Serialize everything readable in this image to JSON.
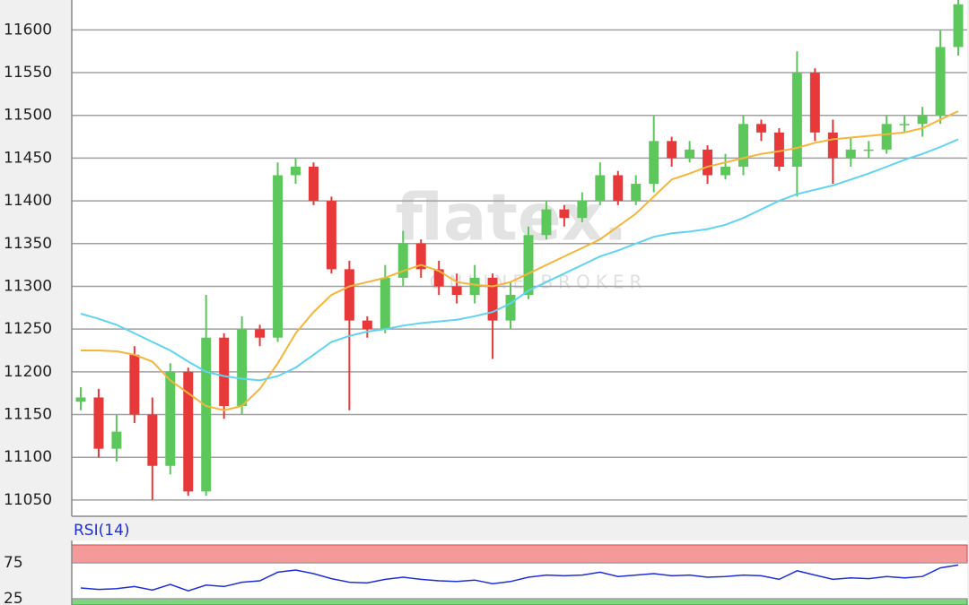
{
  "chart_data": [
    {
      "type": "candlestick",
      "watermark": "flatex.",
      "watermark_subtitle": "ONLINE BROKER",
      "open": [
        11165,
        11170,
        11110,
        11220,
        11150,
        11090,
        11200,
        11060,
        11240,
        11160,
        11250,
        11240,
        11430,
        11440,
        11400,
        11320,
        11260,
        11250,
        11310,
        11350,
        11320,
        11300,
        11290,
        11310,
        11260,
        11290,
        11360,
        11390,
        11380,
        11400,
        11430,
        11400,
        11420,
        11470,
        11450,
        11460,
        11430,
        11440,
        11490,
        11480,
        11440,
        11550,
        11480,
        11450,
        11460,
        11460,
        11490,
        11490,
        11500,
        11580
      ],
      "high": [
        11182,
        11180,
        11150,
        11230,
        11170,
        11210,
        11205,
        11290,
        11245,
        11265,
        11255,
        11445,
        11450,
        11445,
        11405,
        11330,
        11265,
        11325,
        11365,
        11355,
        11330,
        11315,
        11325,
        11315,
        11305,
        11370,
        11400,
        11395,
        11410,
        11445,
        11435,
        11430,
        11500,
        11475,
        11470,
        11465,
        11455,
        11500,
        11495,
        11485,
        11575,
        11555,
        11495,
        11475,
        11470,
        11500,
        11500,
        11510,
        11600,
        11640
      ],
      "low": [
        11155,
        11100,
        11095,
        11140,
        11050,
        11080,
        11055,
        11055,
        11145,
        11150,
        11230,
        11235,
        11420,
        11395,
        11315,
        11155,
        11240,
        11245,
        11300,
        11310,
        11290,
        11280,
        11280,
        11215,
        11250,
        11285,
        11355,
        11370,
        11375,
        11395,
        11395,
        11395,
        11410,
        11440,
        11445,
        11420,
        11425,
        11430,
        11470,
        11435,
        11405,
        11470,
        11420,
        11440,
        11450,
        11455,
        11480,
        11475,
        11490,
        11570
      ],
      "close": [
        11170,
        11110,
        11130,
        11150,
        11090,
        11200,
        11060,
        11240,
        11160,
        11250,
        11240,
        11430,
        11440,
        11400,
        11320,
        11260,
        11250,
        11310,
        11350,
        11320,
        11300,
        11290,
        11310,
        11260,
        11290,
        11360,
        11390,
        11380,
        11400,
        11430,
        11400,
        11420,
        11470,
        11450,
        11460,
        11430,
        11440,
        11490,
        11480,
        11440,
        11550,
        11480,
        11450,
        11460,
        11460,
        11490,
        11490,
        11500,
        11580,
        11630
      ],
      "up_color": "#5cc85c",
      "down_color": "#e8393a",
      "series": [
        {
          "color": "#f5b53a",
          "values": [
            11225,
            11225,
            11224,
            11220,
            11212,
            11190,
            11175,
            11160,
            11155,
            11160,
            11180,
            11210,
            11245,
            11270,
            11290,
            11300,
            11305,
            11310,
            11318,
            11325,
            11318,
            11305,
            11302,
            11300,
            11305,
            11315,
            11325,
            11335,
            11345,
            11355,
            11370,
            11385,
            11405,
            11425,
            11432,
            11440,
            11445,
            11450,
            11455,
            11458,
            11462,
            11468,
            11472,
            11474,
            11476,
            11478,
            11480,
            11485,
            11495,
            11505
          ]
        },
        {
          "color": "#5fd3f0",
          "values": [
            11268,
            11262,
            11255,
            11245,
            11235,
            11225,
            11212,
            11200,
            11195,
            11192,
            11190,
            11195,
            11205,
            11220,
            11235,
            11242,
            11247,
            11250,
            11254,
            11257,
            11259,
            11261,
            11265,
            11270,
            11280,
            11295,
            11305,
            11315,
            11325,
            11335,
            11342,
            11350,
            11358,
            11362,
            11364,
            11367,
            11372,
            11380,
            11390,
            11400,
            11408,
            11413,
            11418,
            11425,
            11432,
            11440,
            11448,
            11455,
            11463,
            11472
          ]
        }
      ],
      "ylim": [
        11031,
        11635
      ],
      "yticks": [
        11050,
        11100,
        11150,
        11200,
        11250,
        11300,
        11350,
        11400,
        11450,
        11500,
        11550,
        11600
      ],
      "grid": true
    },
    {
      "type": "line",
      "title": "RSI(14)",
      "series": [
        {
          "color": "#1f2fd8",
          "values": [
            40,
            38,
            39,
            42,
            37,
            45,
            36,
            44,
            42,
            48,
            50,
            62,
            65,
            60,
            53,
            48,
            47,
            52,
            55,
            52,
            50,
            49,
            51,
            46,
            49,
            55,
            58,
            57,
            58,
            62,
            56,
            58,
            60,
            57,
            58,
            55,
            56,
            58,
            57,
            52,
            64,
            58,
            52,
            54,
            53,
            56,
            54,
            56,
            68,
            72
          ]
        }
      ],
      "ylim": [
        0,
        100
      ],
      "yticks": [
        25,
        75
      ],
      "grid": true,
      "upper_band_color": "#f49a9a",
      "lower_band_color": "#7ed67e"
    }
  ]
}
